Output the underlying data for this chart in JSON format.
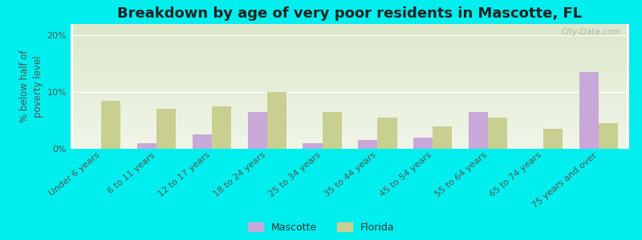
{
  "title": "Breakdown by age of very poor residents in Mascotte, FL",
  "ylabel": "% below half of\npoverty level",
  "categories": [
    "Under 6 years",
    "6 to 11 years",
    "12 to 17 years",
    "18 to 24 years",
    "25 to 34 years",
    "35 to 44 years",
    "45 to 54 years",
    "55 to 64 years",
    "65 to 74 years",
    "75 years and over"
  ],
  "mascotte_values": [
    0,
    1.0,
    2.5,
    6.5,
    1.0,
    1.5,
    2.0,
    6.5,
    0,
    13.5
  ],
  "florida_values": [
    8.5,
    7.0,
    7.5,
    10.0,
    6.5,
    5.5,
    4.0,
    5.5,
    3.5,
    4.5
  ],
  "mascotte_color": "#c8a8d8",
  "florida_color": "#c8cf90",
  "background_color": "#00eeee",
  "plot_bg_top": "#dde8cc",
  "plot_bg_bottom": "#f0f5e8",
  "ylim": [
    0,
    22
  ],
  "yticks": [
    0,
    10,
    20
  ],
  "ytick_labels": [
    "0%",
    "10%",
    "20%"
  ],
  "title_fontsize": 13,
  "axis_label_fontsize": 8.5,
  "tick_label_fontsize": 8,
  "bar_width": 0.35,
  "watermark": "City-Data.com",
  "legend_labels": [
    "Mascotte",
    "Florida"
  ]
}
